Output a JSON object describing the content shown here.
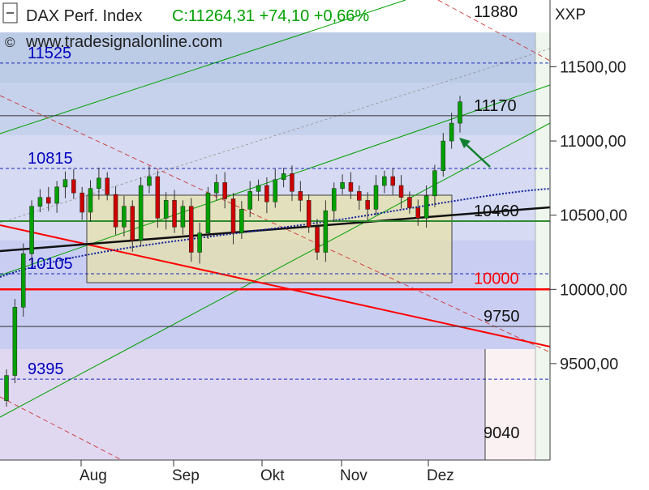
{
  "header": {
    "instrument": "DAX Perf. Index",
    "quote": "C:11264,31 +74,10 +0,66%",
    "source": "www.tradesignalonline.com",
    "copyright_symbol": "©",
    "axis_code": "XXP"
  },
  "colors": {
    "quote_green": "#00a000",
    "level_blue": "#0000c0",
    "red_line": "#ff0000",
    "black_line": "#101010",
    "channel_green": "#00a000",
    "arrow_green": "#108030",
    "candle_red": "#cc0000",
    "candle_green": "#00a000"
  },
  "chart_data": {
    "type": "candlestick",
    "ylim": [
      8850,
      11950
    ],
    "y_ticks": [
      9500,
      10000,
      10500,
      11000,
      11500
    ],
    "y_tick_labels": [
      "9500,00",
      "10000,00",
      "10500,00",
      "11000,00",
      "11500,00"
    ],
    "x_ticks": [
      "Aug",
      "Sep",
      "Okt",
      "Nov",
      "Dez"
    ],
    "levels": [
      {
        "value": 11880,
        "label": "11880",
        "style": "none",
        "label_color": "black"
      },
      {
        "value": 11525,
        "label": "11525",
        "style": "dashed",
        "label_color": "blue"
      },
      {
        "value": 11170,
        "label": "11170",
        "style": "solid",
        "label_color": "black"
      },
      {
        "value": 10815,
        "label": "10815",
        "style": "dashed",
        "label_color": "blue"
      },
      {
        "value": 10460,
        "label": "10460",
        "style": "green",
        "label_color": "black"
      },
      {
        "value": 10105,
        "label": "10105",
        "style": "dashed",
        "label_color": "blue"
      },
      {
        "value": 10000,
        "label": "10000",
        "style": "red",
        "label_color": "red"
      },
      {
        "value": 9750,
        "label": "9750",
        "style": "solid",
        "label_color": "black"
      },
      {
        "value": 9395,
        "label": "9395",
        "style": "dashed",
        "label_color": "blue"
      },
      {
        "value": 9040,
        "label": "9040",
        "style": "none",
        "label_color": "black"
      }
    ],
    "consolidation_box": {
      "top": 10770,
      "bottom": 10150,
      "start": "Aug",
      "end": "Dez"
    },
    "closes": [
      9420,
      9880,
      10240,
      10560,
      10620,
      10580,
      10690,
      10740,
      10650,
      10520,
      10680,
      10750,
      10640,
      10420,
      10560,
      10330,
      10700,
      10760,
      10480,
      10600,
      10420,
      10560,
      10250,
      10380,
      10650,
      10720,
      10610,
      10380,
      10540,
      10660,
      10700,
      10590,
      10740,
      10780,
      10660,
      10600,
      10420,
      10250,
      10530,
      10680,
      10720,
      10660,
      10600,
      10540,
      10700,
      10760,
      10700,
      10620,
      10550,
      10480,
      10630,
      10800,
      11000,
      11120,
      11264
    ]
  }
}
